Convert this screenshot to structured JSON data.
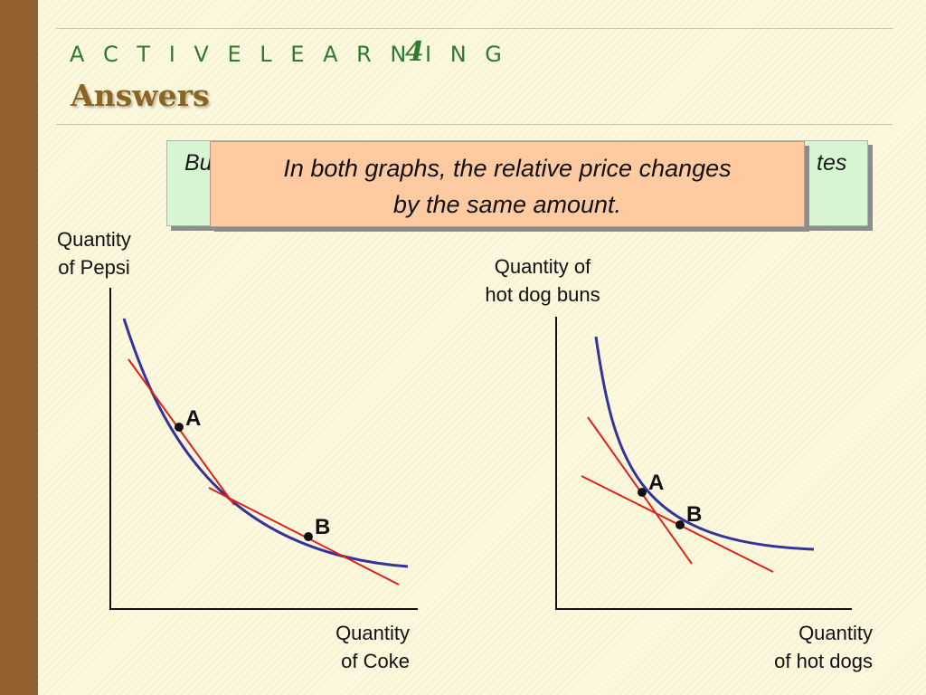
{
  "colors": {
    "sidebar": "#93612f",
    "rule": "#c9c7b4",
    "indifference_curve": "#35339a",
    "budget_line": "#e0201c",
    "point": "#111111"
  },
  "header": {
    "title_spaced": "A C T I V E L E A R N I N G",
    "title_number": "4",
    "subtitle": "Answers"
  },
  "callout": {
    "behind_left": "Bu",
    "behind_right": "tes",
    "line1": "In both graphs, the relative price changes",
    "line2": "by the same amount."
  },
  "graph_left": {
    "y_label_line1": "Quantity",
    "y_label_line2": "of Pepsi",
    "x_label_line1": "Quantity",
    "x_label_line2": "of Coke",
    "point_a": "A",
    "point_b": "B"
  },
  "graph_right": {
    "y_label_line1": "Quantity of",
    "y_label_line2": "hot dog buns",
    "x_label_line1": "Quantity",
    "x_label_line2": "of hot dogs",
    "point_a": "A",
    "point_b": "B"
  }
}
